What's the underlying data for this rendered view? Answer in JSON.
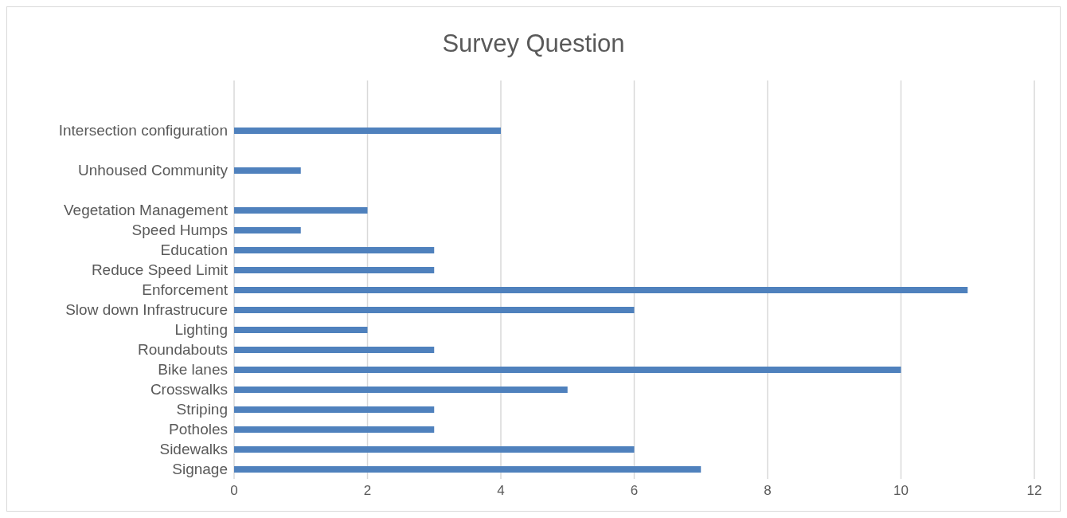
{
  "chart_data": {
    "type": "bar",
    "orientation": "horizontal",
    "title": "Survey Question",
    "categories": [
      null,
      null,
      "Intersection configuration",
      null,
      "Unhoused Community",
      null,
      "Vegetation Management",
      "Speed Humps",
      "Education",
      "Reduce Speed Limit",
      "Enforcement",
      "Slow down Infrastrucure",
      "Lighting",
      "Roundabouts",
      "Bike lanes",
      "Crosswalks",
      "Striping",
      "Potholes",
      "Sidewalks",
      "Signage"
    ],
    "values": [
      null,
      null,
      4,
      null,
      1,
      null,
      2,
      1,
      3,
      3,
      11,
      6,
      2,
      3,
      10,
      5,
      3,
      3,
      6,
      7
    ],
    "color": "#4f81bd",
    "xlim": [
      0,
      12
    ],
    "xticks": [
      0,
      2,
      4,
      6,
      8,
      10,
      12
    ],
    "grid": "x"
  }
}
